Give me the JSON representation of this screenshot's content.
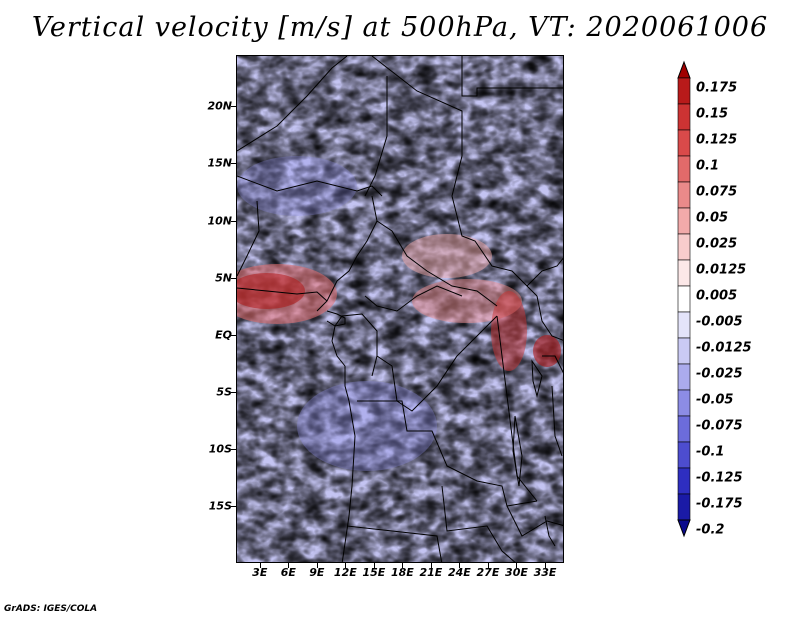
{
  "title": "Vertical velocity [m/s] at 500hPa, VT: 2020061006",
  "map": {
    "region": "Central Africa",
    "lat_labels": [
      "20N",
      "15N",
      "10N",
      "5N",
      "EQ",
      "5S",
      "10S",
      "15S"
    ],
    "lat_values": [
      20,
      15,
      10,
      5,
      0,
      -5,
      -10,
      -15
    ],
    "lon_labels": [
      "3E",
      "6E",
      "9E",
      "12E",
      "15E",
      "18E",
      "21E",
      "24E",
      "27E",
      "30E",
      "33E"
    ],
    "lon_values": [
      3,
      6,
      9,
      12,
      15,
      18,
      21,
      24,
      27,
      30,
      33
    ],
    "lon_range": [
      0.5,
      35
    ],
    "lat_range": [
      -20,
      24.5
    ]
  },
  "colorbar": {
    "labels": [
      "0.175",
      "0.15",
      "0.125",
      "0.1",
      "0.075",
      "0.05",
      "0.025",
      "0.0125",
      "0.005",
      "-0.005",
      "-0.0125",
      "-0.025",
      "-0.05",
      "-0.075",
      "-0.1",
      "-0.125",
      "-0.175",
      "-0.2"
    ],
    "colors": [
      "#a00000",
      "#b81a1a",
      "#cc3333",
      "#d94a4a",
      "#e26a6a",
      "#ea8a8a",
      "#f2aaaa",
      "#f8cccc",
      "#fce8e8",
      "#ffffff",
      "#e4e4fa",
      "#cacaf4",
      "#ababed",
      "#8c8ce5",
      "#6c6cdb",
      "#4d4dcf",
      "#2e2ec0",
      "#1a1aa6",
      "#0a0a8c"
    ]
  },
  "footer": "GrADS: IGES/COLA"
}
